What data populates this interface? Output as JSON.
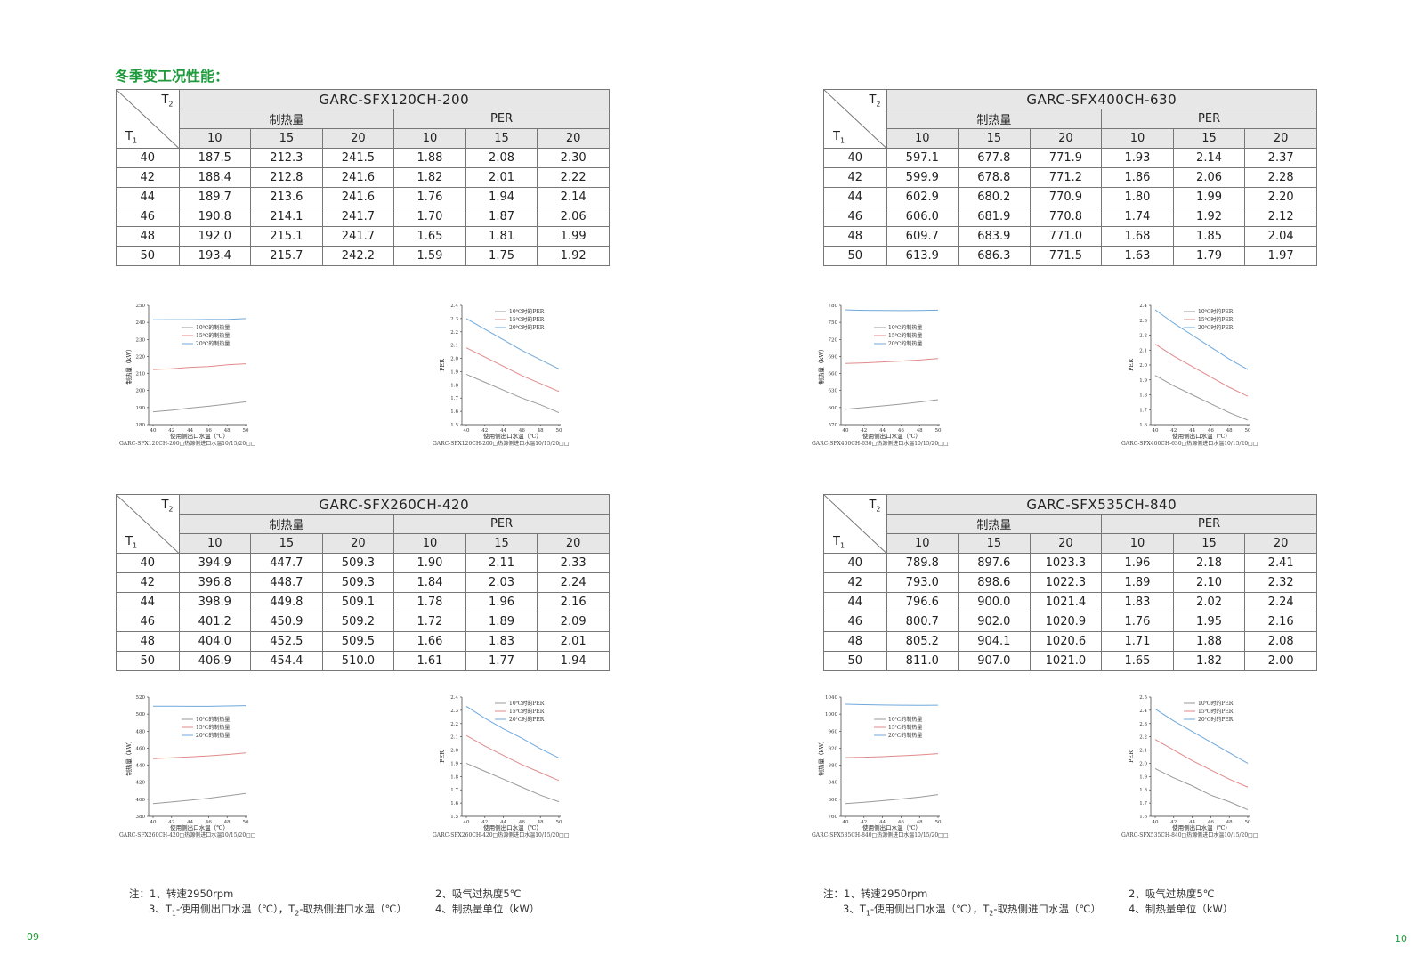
{
  "section_title": "冬季变工况性能：",
  "header_labels": {
    "t2": "T",
    "t1": "T",
    "sub2": "2",
    "sub1": "1",
    "group_heat": "制热量",
    "group_per": "PER",
    "cols": [
      "10",
      "15",
      "20",
      "10",
      "15",
      "20"
    ]
  },
  "tables": [
    {
      "model": "GARC-SFX120CH-200",
      "rows": [
        [
          "40",
          "187.5",
          "212.3",
          "241.5",
          "1.88",
          "2.08",
          "2.30"
        ],
        [
          "42",
          "188.4",
          "212.8",
          "241.6",
          "1.82",
          "2.01",
          "2.22"
        ],
        [
          "44",
          "189.7",
          "213.6",
          "241.6",
          "1.76",
          "1.94",
          "2.14"
        ],
        [
          "46",
          "190.8",
          "214.1",
          "241.7",
          "1.70",
          "1.87",
          "2.06"
        ],
        [
          "48",
          "192.0",
          "215.1",
          "241.7",
          "1.65",
          "1.81",
          "1.99"
        ],
        [
          "50",
          "193.4",
          "215.7",
          "242.2",
          "1.59",
          "1.75",
          "1.92"
        ]
      ]
    },
    {
      "model": "GARC-SFX400CH-630",
      "rows": [
        [
          "40",
          "597.1",
          "677.8",
          "771.9",
          "1.93",
          "2.14",
          "2.37"
        ],
        [
          "42",
          "599.9",
          "678.8",
          "771.2",
          "1.86",
          "2.06",
          "2.28"
        ],
        [
          "44",
          "602.9",
          "680.2",
          "770.9",
          "1.80",
          "1.99",
          "2.20"
        ],
        [
          "46",
          "606.0",
          "681.9",
          "770.8",
          "1.74",
          "1.92",
          "2.12"
        ],
        [
          "48",
          "609.7",
          "683.9",
          "771.0",
          "1.68",
          "1.85",
          "2.04"
        ],
        [
          "50",
          "613.9",
          "686.3",
          "771.5",
          "1.63",
          "1.79",
          "1.97"
        ]
      ]
    },
    {
      "model": "GARC-SFX260CH-420",
      "rows": [
        [
          "40",
          "394.9",
          "447.7",
          "509.3",
          "1.90",
          "2.11",
          "2.33"
        ],
        [
          "42",
          "396.8",
          "448.7",
          "509.3",
          "1.84",
          "2.03",
          "2.24"
        ],
        [
          "44",
          "398.9",
          "449.8",
          "509.1",
          "1.78",
          "1.96",
          "2.16"
        ],
        [
          "46",
          "401.2",
          "450.9",
          "509.2",
          "1.72",
          "1.89",
          "2.09"
        ],
        [
          "48",
          "404.0",
          "452.5",
          "509.5",
          "1.66",
          "1.83",
          "2.01"
        ],
        [
          "50",
          "406.9",
          "454.4",
          "510.0",
          "1.61",
          "1.77",
          "1.94"
        ]
      ]
    },
    {
      "model": "GARC-SFX535CH-840",
      "rows": [
        [
          "40",
          "789.8",
          "897.6",
          "1023.3",
          "1.96",
          "2.18",
          "2.41"
        ],
        [
          "42",
          "793.0",
          "898.6",
          "1022.3",
          "1.89",
          "2.10",
          "2.32"
        ],
        [
          "44",
          "796.6",
          "900.0",
          "1021.4",
          "1.83",
          "2.02",
          "2.24"
        ],
        [
          "46",
          "800.7",
          "902.0",
          "1020.9",
          "1.76",
          "1.95",
          "2.16"
        ],
        [
          "48",
          "805.2",
          "904.1",
          "1020.6",
          "1.71",
          "1.88",
          "2.08"
        ],
        [
          "50",
          "811.0",
          "907.0",
          "1021.0",
          "1.65",
          "1.82",
          "2.00"
        ]
      ]
    }
  ],
  "chart_data": [
    {
      "type": "line",
      "caption": "GARC-SFX120CH-200□热源侧进口水温10/15/20□□",
      "xlabel": "使用侧出口水温（℃）",
      "ylabel": "制热量（kW）",
      "x": [
        40,
        42,
        44,
        46,
        48,
        50
      ],
      "ylim": [
        180,
        250
      ],
      "ystep": 10,
      "series": [
        {
          "name": "10℃的制热量",
          "color": "#9a9a9a",
          "values": [
            187.5,
            188.4,
            189.7,
            190.8,
            192.0,
            193.4
          ]
        },
        {
          "name": "15℃的制热量",
          "color": "#e08a8a",
          "values": [
            212.3,
            212.8,
            213.6,
            214.1,
            215.1,
            215.7
          ]
        },
        {
          "name": "20℃的制热量",
          "color": "#6fa8dc",
          "values": [
            241.5,
            241.6,
            241.6,
            241.7,
            241.7,
            242.2
          ]
        }
      ],
      "legend": "top-left"
    },
    {
      "type": "line",
      "caption": "GARC-SFX120CH-200□热源侧进口水温10/15/20□□",
      "xlabel": "使用侧出口水温（℃）",
      "ylabel": "PER",
      "x": [
        40,
        42,
        44,
        46,
        48,
        50
      ],
      "ylim": [
        1.5,
        2.4
      ],
      "ystep": 0.1,
      "series": [
        {
          "name": "10℃时的PER",
          "color": "#9a9a9a",
          "values": [
            1.88,
            1.82,
            1.76,
            1.7,
            1.65,
            1.59
          ]
        },
        {
          "name": "15℃时的PER",
          "color": "#e08a8a",
          "values": [
            2.08,
            2.01,
            1.94,
            1.87,
            1.81,
            1.75
          ]
        },
        {
          "name": "20℃时的PER",
          "color": "#6fa8dc",
          "values": [
            2.3,
            2.22,
            2.14,
            2.06,
            1.99,
            1.92
          ]
        }
      ],
      "legend": "top-right"
    },
    {
      "type": "line",
      "caption": "GARC-SFX400CH-630□热源侧进口水温10/15/20□□",
      "xlabel": "使用侧出口水温（℃）",
      "ylabel": "制热量（kW）",
      "x": [
        40,
        42,
        44,
        46,
        48,
        50
      ],
      "ylim": [
        570,
        780
      ],
      "ystep": 30,
      "series": [
        {
          "name": "10℃的制热量",
          "color": "#9a9a9a",
          "values": [
            597.1,
            599.9,
            602.9,
            606.0,
            609.7,
            613.9
          ]
        },
        {
          "name": "15℃的制热量",
          "color": "#e08a8a",
          "values": [
            677.8,
            678.8,
            680.2,
            681.9,
            683.9,
            686.3
          ]
        },
        {
          "name": "20℃的制热量",
          "color": "#6fa8dc",
          "values": [
            771.9,
            771.2,
            770.9,
            770.8,
            771.0,
            771.5
          ]
        }
      ],
      "legend": "top-left"
    },
    {
      "type": "line",
      "caption": "GARC-SFX400CH-630□热源侧进口水温10/15/20□□",
      "xlabel": "使用侧出口水温（℃）",
      "ylabel": "PER",
      "x": [
        40,
        42,
        44,
        46,
        48,
        50
      ],
      "ylim": [
        1.6,
        2.4
      ],
      "ystep": 0.1,
      "series": [
        {
          "name": "10℃时的PER",
          "color": "#9a9a9a",
          "values": [
            1.93,
            1.86,
            1.8,
            1.74,
            1.68,
            1.63
          ]
        },
        {
          "name": "15℃时的PER",
          "color": "#e08a8a",
          "values": [
            2.14,
            2.06,
            1.99,
            1.92,
            1.85,
            1.79
          ]
        },
        {
          "name": "20℃时的PER",
          "color": "#6fa8dc",
          "values": [
            2.37,
            2.28,
            2.2,
            2.12,
            2.04,
            1.97
          ]
        }
      ],
      "legend": "top-right"
    },
    {
      "type": "line",
      "caption": "GARC-SFX260CH-420□热源侧进口水温10/15/20□□",
      "xlabel": "使用侧出口水温（℃）",
      "ylabel": "制热量（kW）",
      "x": [
        40,
        42,
        44,
        46,
        48,
        50
      ],
      "ylim": [
        380,
        520
      ],
      "ystep": 20,
      "series": [
        {
          "name": "10℃的制热量",
          "color": "#9a9a9a",
          "values": [
            394.9,
            396.8,
            398.9,
            401.2,
            404.0,
            406.9
          ]
        },
        {
          "name": "15℃的制热量",
          "color": "#e08a8a",
          "values": [
            447.7,
            448.7,
            449.8,
            450.9,
            452.5,
            454.4
          ]
        },
        {
          "name": "20℃的制热量",
          "color": "#6fa8dc",
          "values": [
            509.3,
            509.3,
            509.1,
            509.2,
            509.5,
            510.0
          ]
        }
      ],
      "legend": "top-left"
    },
    {
      "type": "line",
      "caption": "GARC-SFX260CH-420□热源侧进口水温10/15/20□□",
      "xlabel": "使用侧出口水温（℃）",
      "ylabel": "PER",
      "x": [
        40,
        42,
        44,
        46,
        48,
        50
      ],
      "ylim": [
        1.5,
        2.4
      ],
      "ystep": 0.1,
      "series": [
        {
          "name": "10℃时的PER",
          "color": "#9a9a9a",
          "values": [
            1.9,
            1.84,
            1.78,
            1.72,
            1.66,
            1.61
          ]
        },
        {
          "name": "15℃时的PER",
          "color": "#e08a8a",
          "values": [
            2.11,
            2.03,
            1.96,
            1.89,
            1.83,
            1.77
          ]
        },
        {
          "name": "20℃时的PER",
          "color": "#6fa8dc",
          "values": [
            2.33,
            2.24,
            2.16,
            2.09,
            2.01,
            1.94
          ]
        }
      ],
      "legend": "top-right"
    },
    {
      "type": "line",
      "caption": "GARC-SFX535CH-840□热源侧进口水温10/15/20□□",
      "xlabel": "使用侧出口水温（℃）",
      "ylabel": "制热量（kW）",
      "x": [
        40,
        42,
        44,
        46,
        48,
        50
      ],
      "ylim": [
        760,
        1040
      ],
      "ystep": 40,
      "series": [
        {
          "name": "10℃的制热量",
          "color": "#9a9a9a",
          "values": [
            789.8,
            793.0,
            796.6,
            800.7,
            805.2,
            811.0
          ]
        },
        {
          "name": "15℃的制热量",
          "color": "#e08a8a",
          "values": [
            897.6,
            898.6,
            900.0,
            902.0,
            904.1,
            907.0
          ]
        },
        {
          "name": "20℃的制热量",
          "color": "#6fa8dc",
          "values": [
            1023.3,
            1022.3,
            1021.4,
            1020.9,
            1020.6,
            1021.0
          ]
        }
      ],
      "legend": "top-left"
    },
    {
      "type": "line",
      "caption": "GARC-SFX535CH-840□热源侧进口水温10/15/20□□",
      "xlabel": "使用侧出口水温（℃）",
      "ylabel": "PER",
      "x": [
        40,
        42,
        44,
        46,
        48,
        50
      ],
      "ylim": [
        1.6,
        2.5
      ],
      "ystep": 0.1,
      "series": [
        {
          "name": "10℃时的PER",
          "color": "#9a9a9a",
          "values": [
            1.96,
            1.89,
            1.83,
            1.76,
            1.71,
            1.65
          ]
        },
        {
          "name": "15℃时的PER",
          "color": "#e08a8a",
          "values": [
            2.18,
            2.1,
            2.02,
            1.95,
            1.88,
            1.82
          ]
        },
        {
          "name": "20℃时的PER",
          "color": "#6fa8dc",
          "values": [
            2.41,
            2.32,
            2.24,
            2.16,
            2.08,
            2.0
          ]
        }
      ],
      "legend": "top-right"
    }
  ],
  "notes": {
    "n1": "注：1、转速2950rpm",
    "n2": "2、吸气过热度5℃",
    "n3a": "3、T",
    "n3b": "-使用侧出口水温（℃），T",
    "n3c": "-取热侧进口水温（℃）",
    "n4": "4、制热量单位（kW）",
    "sub1": "1",
    "sub2": "2"
  },
  "page_numbers": {
    "left": "09",
    "right": "10"
  }
}
